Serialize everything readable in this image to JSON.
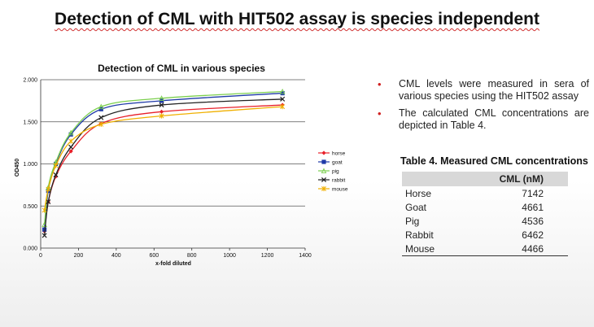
{
  "slide": {
    "title": "Detection of CML with HIT502 assay is species independent",
    "bullets": [
      "CML levels were measured in sera of various species using the HIT502 assay",
      "The calculated CML concentrations are depicted in Table 4."
    ]
  },
  "table": {
    "caption": "Table 4. Measured CML concentrations",
    "header": [
      "",
      "CML (nM)"
    ],
    "rows": [
      {
        "species": "Horse",
        "value": "7142"
      },
      {
        "species": "Goat",
        "value": "4661"
      },
      {
        "species": "Pig",
        "value": "4536"
      },
      {
        "species": "Rabbit",
        "value": "6462"
      },
      {
        "species": "Mouse",
        "value": "4466"
      }
    ]
  },
  "chart_data": {
    "type": "line",
    "title": "Detection of CML in various species",
    "xlabel": "x-fold diluted",
    "ylabel": "OD450",
    "xlim": [
      0,
      1400
    ],
    "ylim": [
      0,
      2.0
    ],
    "xticks": [
      0,
      200,
      400,
      600,
      800,
      1000,
      1200,
      1400
    ],
    "yticks": [
      0,
      0.5,
      1.0,
      1.5,
      2.0
    ],
    "ytick_labels": [
      "0.000",
      "0.500",
      "1.000",
      "1.500",
      "2.000"
    ],
    "grid": "horizontal",
    "legend": "right",
    "x": [
      20,
      40,
      80,
      160,
      320,
      640,
      1280
    ],
    "series": [
      {
        "name": "horse",
        "color": "#e8202a",
        "marker": "diamond",
        "values": [
          0.2,
          0.55,
          0.85,
          1.15,
          1.48,
          1.62,
          1.7
        ]
      },
      {
        "name": "goat",
        "color": "#1f3aa8",
        "marker": "square",
        "values": [
          0.22,
          0.68,
          1.0,
          1.35,
          1.65,
          1.75,
          1.84
        ]
      },
      {
        "name": "pig",
        "color": "#7ccf4f",
        "marker": "triangle",
        "values": [
          0.28,
          0.72,
          1.02,
          1.37,
          1.68,
          1.78,
          1.86
        ]
      },
      {
        "name": "rabbit",
        "color": "#222222",
        "marker": "x",
        "values": [
          0.15,
          0.55,
          0.87,
          1.2,
          1.55,
          1.7,
          1.77
        ]
      },
      {
        "name": "mouse",
        "color": "#f0b000",
        "marker": "star",
        "values": [
          0.45,
          0.7,
          0.98,
          1.27,
          1.47,
          1.57,
          1.68
        ]
      }
    ]
  }
}
